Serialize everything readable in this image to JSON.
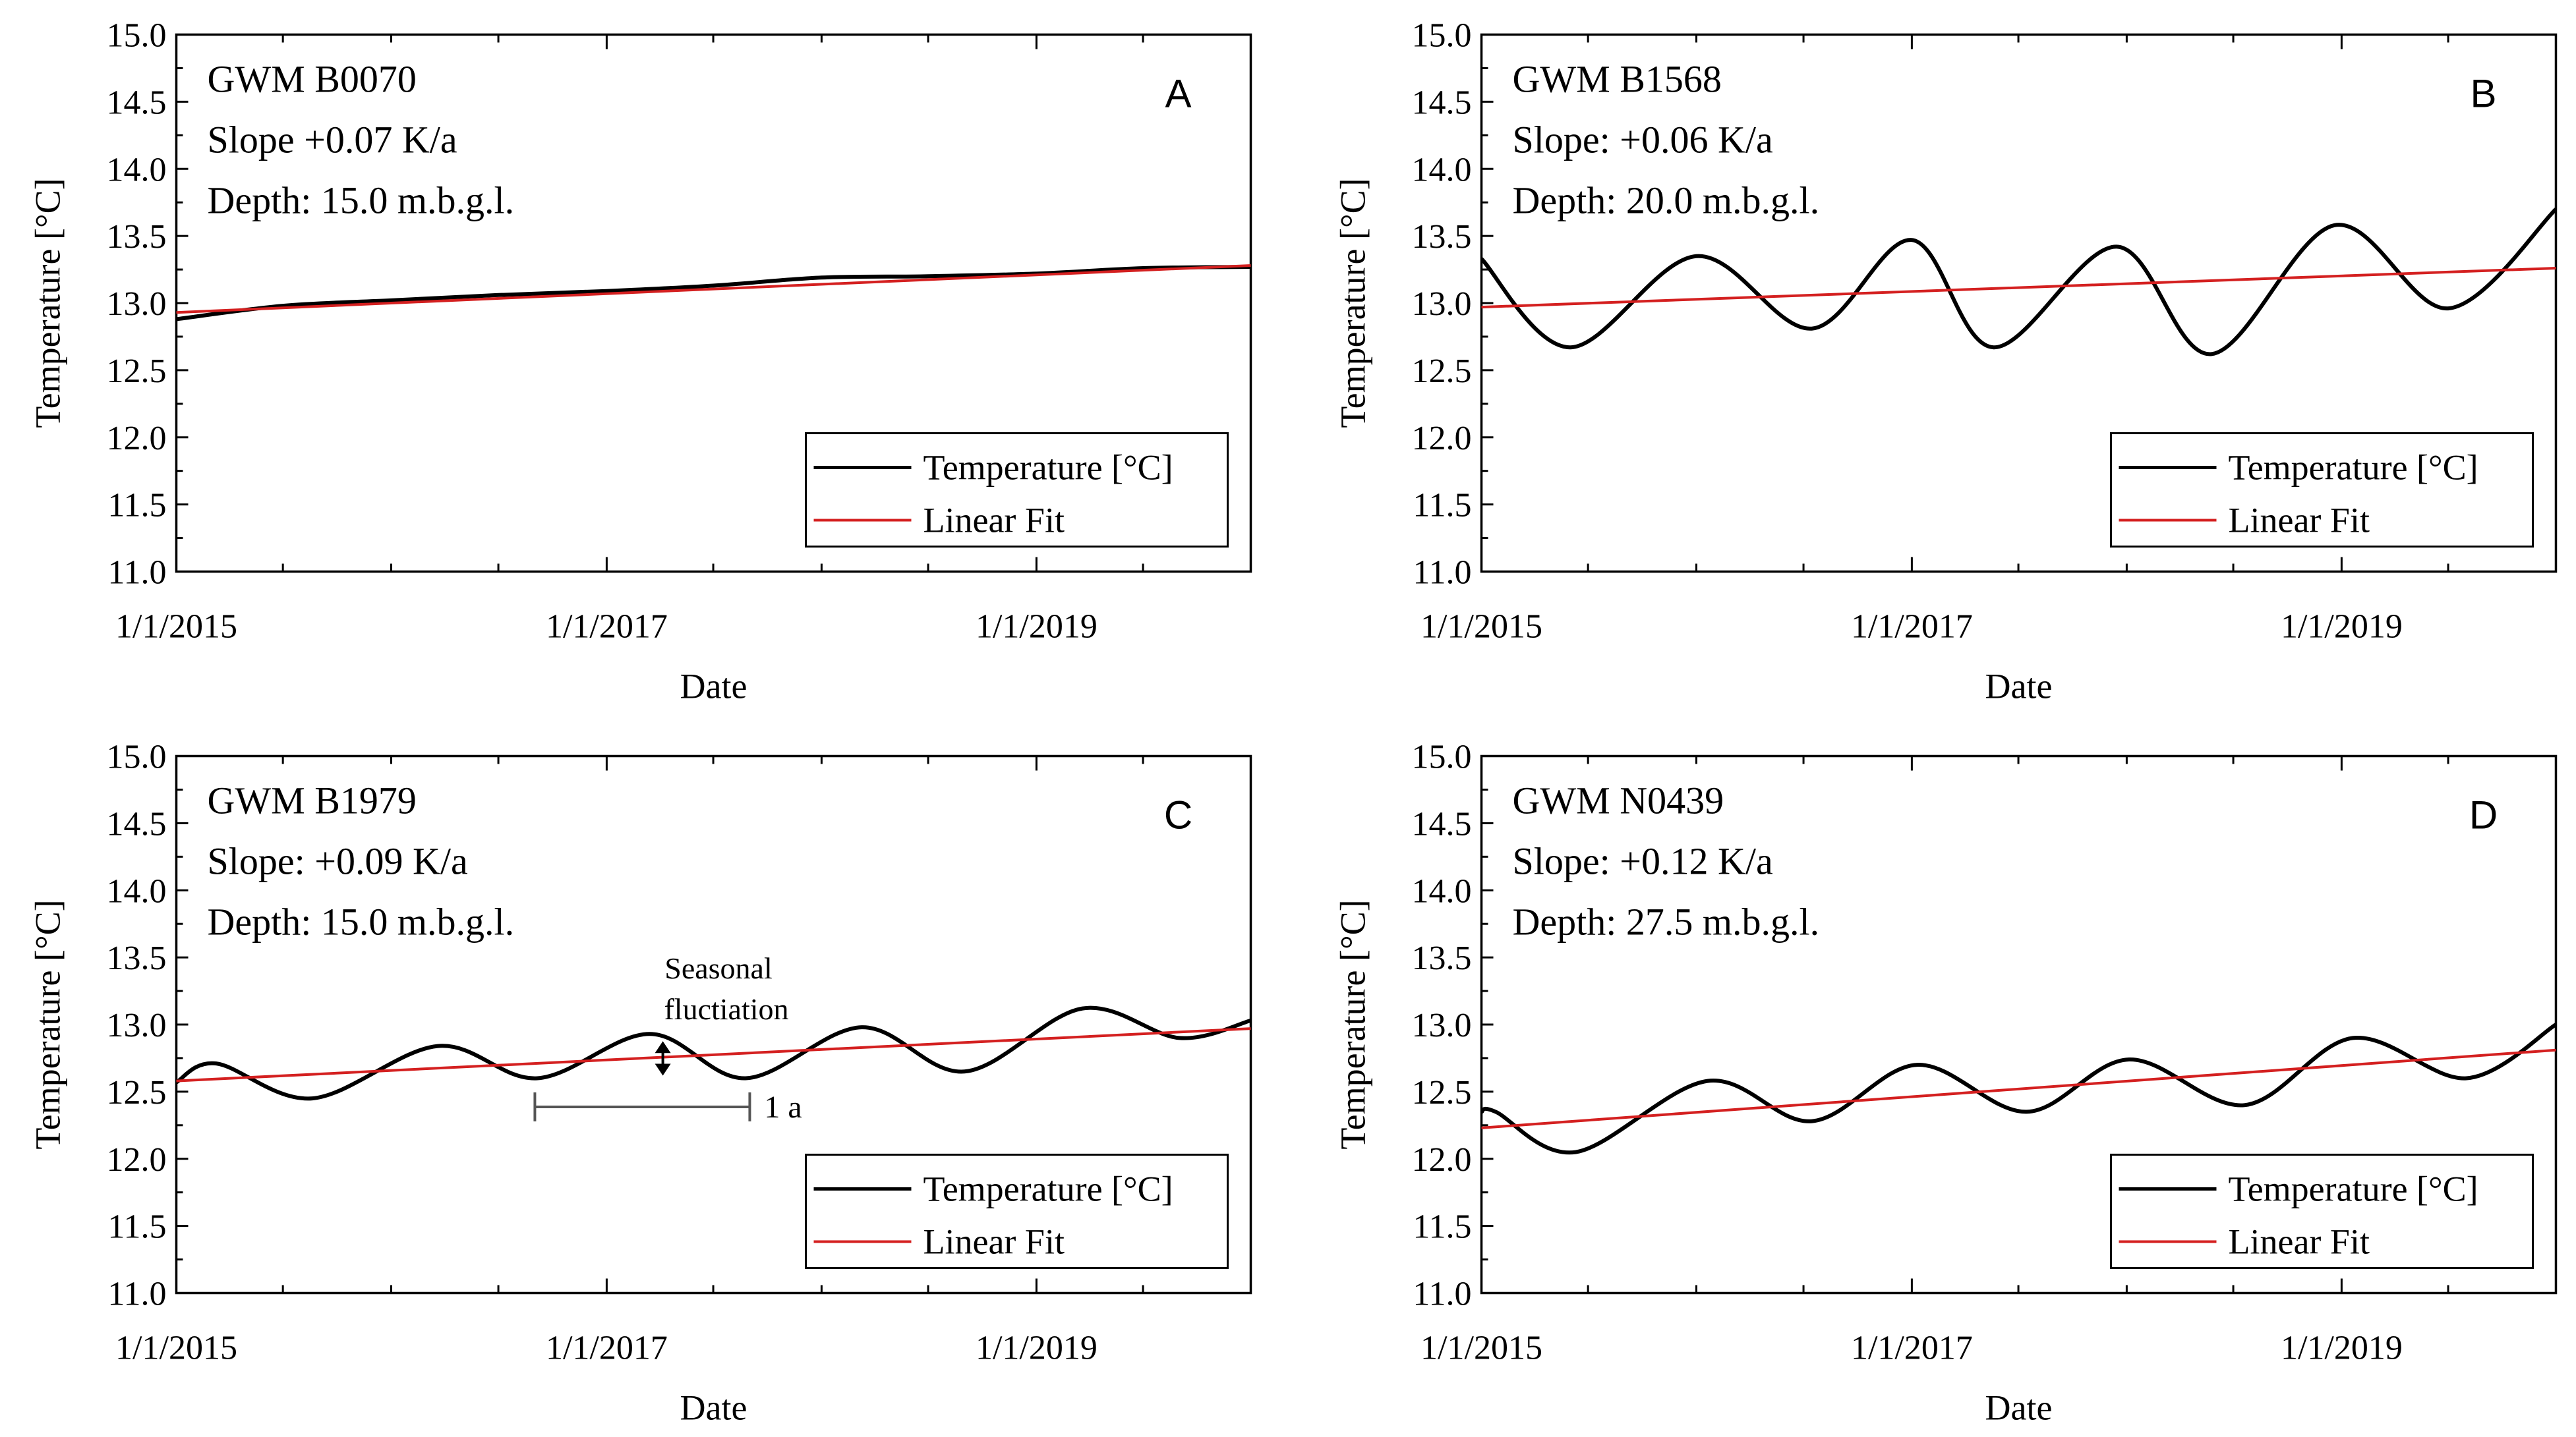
{
  "chart_data": [
    {
      "type": "line",
      "panel": "A",
      "annotations": [
        "GWM  B0070",
        "Slope +0.07 K/a",
        "Depth: 15.0 m.b.g.l."
      ],
      "xlabel": "Date",
      "ylabel": "Temperature [°C]",
      "xticks": [
        "1/1/2015",
        "1/1/2017",
        "1/1/2019"
      ],
      "yticks": [
        "11.0",
        "11.5",
        "12.0",
        "12.5",
        "13.0",
        "13.5",
        "14.0",
        "14.5",
        "15.0"
      ],
      "xlim": [
        "2015-01-01",
        "2019-12-31"
      ],
      "ylim": [
        11.0,
        15.0
      ],
      "legend": {
        "position": "bottom-right",
        "entries": [
          "Temperature [°C]",
          "Linear Fit"
        ]
      },
      "series": [
        {
          "name": "Temperature [°C]",
          "color": "#000000",
          "x": [
            "2015-01-01",
            "2015-07-01",
            "2016-01-01",
            "2016-07-01",
            "2017-01-01",
            "2017-07-01",
            "2018-01-01",
            "2018-07-01",
            "2019-01-01",
            "2019-07-01",
            "2019-12-31"
          ],
          "y": [
            12.88,
            12.98,
            13.02,
            13.06,
            13.09,
            13.13,
            13.19,
            13.2,
            13.22,
            13.26,
            13.27
          ]
        },
        {
          "name": "Linear Fit",
          "color": "#d42020",
          "x": [
            "2015-01-01",
            "2019-12-31"
          ],
          "y": [
            12.93,
            13.28
          ]
        }
      ]
    },
    {
      "type": "line",
      "panel": "B",
      "annotations": [
        "GWM  B1568",
        "Slope: +0.06 K/a",
        "Depth: 20.0 m.b.g.l."
      ],
      "xlabel": "Date",
      "ylabel": "Temperature [°C]",
      "xticks": [
        "1/1/2015",
        "1/1/2017",
        "1/1/2019"
      ],
      "yticks": [
        "11.0",
        "11.5",
        "12.0",
        "12.5",
        "13.0",
        "13.5",
        "14.0",
        "14.5",
        "15.0"
      ],
      "xlim": [
        "2015-01-01",
        "2019-12-31"
      ],
      "ylim": [
        11.0,
        15.0
      ],
      "legend": {
        "position": "bottom-right",
        "entries": [
          "Temperature [°C]",
          "Linear Fit"
        ]
      },
      "series": [
        {
          "name": "Temperature [°C]",
          "color": "#000000",
          "x": [
            "2015-01-01",
            "2015-06-01",
            "2016-01-01",
            "2016-07-15",
            "2017-01-01",
            "2017-05-20",
            "2017-12-15",
            "2018-05-25",
            "2018-12-20",
            "2019-07-01",
            "2019-12-31"
          ],
          "y": [
            13.33,
            12.67,
            13.35,
            12.81,
            13.47,
            12.67,
            13.42,
            12.62,
            13.58,
            12.96,
            13.7
          ]
        },
        {
          "name": "Linear Fit",
          "color": "#d42020",
          "x": [
            "2015-01-01",
            "2019-12-31"
          ],
          "y": [
            12.97,
            13.26
          ]
        }
      ]
    },
    {
      "type": "line",
      "panel": "C",
      "annotations": [
        "GWM  B1979",
        "Slope: +0.09 K/a",
        "Depth: 15.0 m.b.g.l.",
        "Seasonal",
        "fluctiation",
        "1 a"
      ],
      "xlabel": "Date",
      "ylabel": "Temperature [°C]",
      "xticks": [
        "1/1/2015",
        "1/1/2017",
        "1/1/2019"
      ],
      "yticks": [
        "11.0",
        "11.5",
        "12.0",
        "12.5",
        "13.0",
        "13.5",
        "14.0",
        "14.5",
        "15.0"
      ],
      "xlim": [
        "2015-01-01",
        "2019-12-31"
      ],
      "ylim": [
        11.0,
        15.0
      ],
      "legend": {
        "position": "bottom-right",
        "entries": [
          "Temperature [°C]",
          "Linear Fit"
        ]
      },
      "series": [
        {
          "name": "Temperature [°C]",
          "color": "#000000",
          "x": [
            "2015-01-01",
            "2015-03-10",
            "2015-08-20",
            "2016-03-20",
            "2016-09-05",
            "2017-03-15",
            "2017-08-25",
            "2018-03-10",
            "2018-09-01",
            "2019-03-20",
            "2019-09-01",
            "2019-12-31"
          ],
          "y": [
            12.57,
            12.71,
            12.45,
            12.84,
            12.6,
            12.93,
            12.6,
            12.98,
            12.65,
            13.12,
            12.9,
            13.03
          ]
        },
        {
          "name": "Linear Fit",
          "color": "#d42020",
          "x": [
            "2015-01-01",
            "2019-12-31"
          ],
          "y": [
            12.58,
            12.97
          ]
        }
      ]
    },
    {
      "type": "line",
      "panel": "D",
      "annotations": [
        "GWM  N0439",
        "Slope: +0.12 K/a",
        "Depth: 27.5 m.b.g.l."
      ],
      "xlabel": "Date",
      "ylabel": "Temperature [°C]",
      "xticks": [
        "1/1/2015",
        "1/1/2017",
        "1/1/2019"
      ],
      "yticks": [
        "11.0",
        "11.5",
        "12.0",
        "12.5",
        "13.0",
        "13.5",
        "14.0",
        "14.5",
        "15.0"
      ],
      "xlim": [
        "2015-01-01",
        "2019-12-31"
      ],
      "ylim": [
        11.0,
        15.0
      ],
      "legend": {
        "position": "bottom-right",
        "entries": [
          "Temperature [°C]",
          "Linear Fit"
        ]
      },
      "series": [
        {
          "name": "Temperature [°C]",
          "color": "#000000",
          "x": [
            "2015-01-01",
            "2015-01-25",
            "2015-06-10",
            "2016-01-20",
            "2016-07-15",
            "2017-01-10",
            "2017-07-15",
            "2018-01-05",
            "2018-07-20",
            "2019-01-20",
            "2019-08-01",
            "2019-12-31"
          ],
          "y": [
            12.35,
            12.35,
            12.05,
            12.58,
            12.28,
            12.7,
            12.35,
            12.74,
            12.4,
            12.9,
            12.6,
            13.0
          ]
        },
        {
          "name": "Linear Fit",
          "color": "#d42020",
          "x": [
            "2015-01-01",
            "2019-12-31"
          ],
          "y": [
            12.23,
            12.81
          ]
        }
      ]
    }
  ]
}
